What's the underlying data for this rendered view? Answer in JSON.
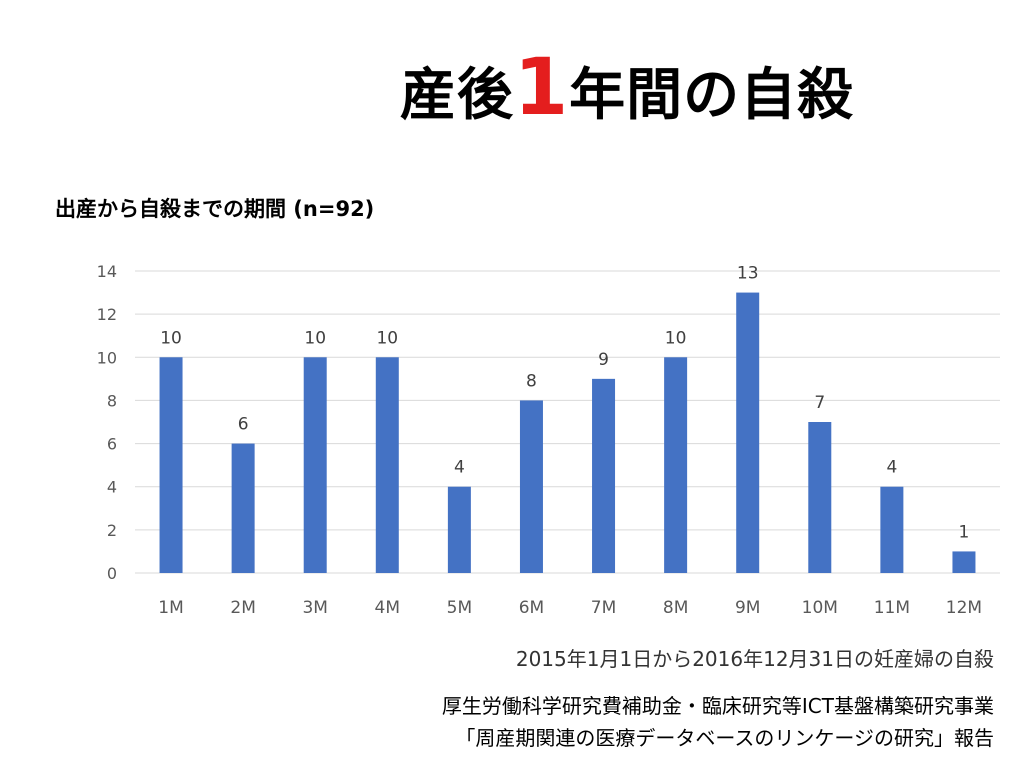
{
  "title": {
    "before": "産後",
    "highlight": "1",
    "after": "年間の自殺"
  },
  "accent_color": "#e41e1e",
  "bar_color": "#4472c4",
  "chart_data": {
    "type": "bar",
    "title": "出産から自殺までの期間 (n=92)",
    "categories": [
      "1M",
      "2M",
      "3M",
      "4M",
      "5M",
      "6M",
      "7M",
      "8M",
      "9M",
      "10M",
      "11M",
      "12M"
    ],
    "values": [
      10,
      6,
      10,
      10,
      4,
      8,
      9,
      10,
      13,
      7,
      4,
      1
    ],
    "yticks": [
      0,
      2,
      4,
      6,
      8,
      10,
      12,
      14
    ],
    "ylim": [
      0,
      14
    ],
    "grid": true,
    "data_labels": true,
    "xlabel": "",
    "ylabel": ""
  },
  "notes": {
    "period": "2015年1月1日から2016年12月31日の妊産婦の自殺",
    "source_line1": "厚生労働科学研究費補助金・臨床研究等ICT基盤構築研究事業",
    "source_line2": "「周産期関連の医療データベースのリンケージの研究」報告"
  }
}
